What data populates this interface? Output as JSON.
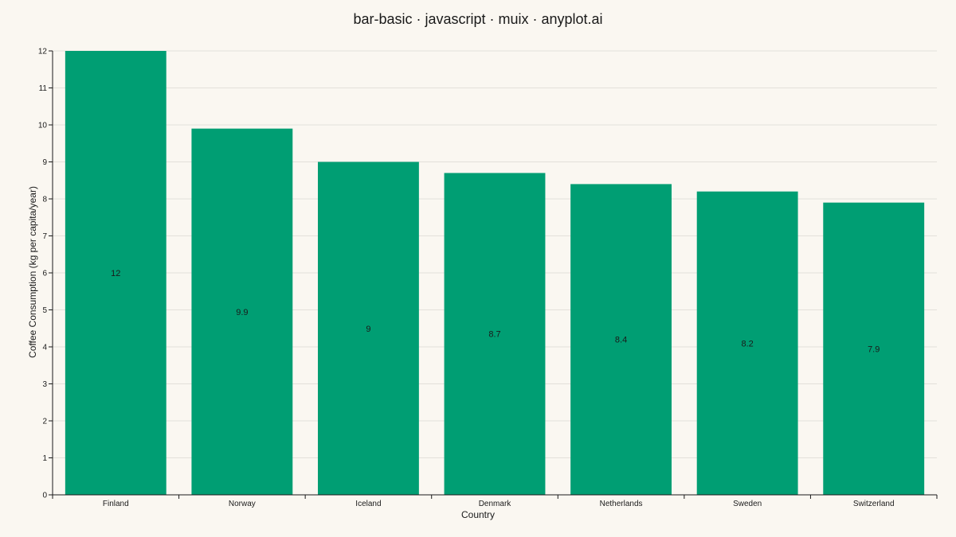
{
  "chart_data": {
    "type": "bar",
    "title": "bar-basic · javascript · muix · anyplot.ai",
    "xlabel": "Country",
    "ylabel": "Coffee Consumption (kg per capita/year)",
    "categories": [
      "Finland",
      "Norway",
      "Iceland",
      "Denmark",
      "Netherlands",
      "Sweden",
      "Switzerland"
    ],
    "values": [
      12,
      9.9,
      9,
      8.7,
      8.4,
      8.2,
      7.9
    ],
    "data_labels": [
      "12",
      "9.9",
      "9",
      "8.7",
      "8.4",
      "8.2",
      "7.9"
    ],
    "ylim": [
      0,
      12
    ],
    "yticks": [
      0,
      1,
      2,
      3,
      4,
      5,
      6,
      7,
      8,
      9,
      10,
      11,
      12
    ],
    "grid": true,
    "bar_color": "#009e73",
    "background_color": "#faf7f1"
  }
}
